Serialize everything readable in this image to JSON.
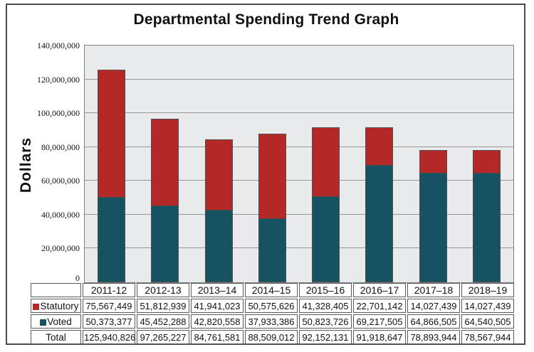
{
  "title": "Departmental Spending Trend Graph",
  "y_axis": {
    "label": "Dollars",
    "tick_labels": [
      "0",
      "20,000,000",
      "40,000,000",
      "60,000,000",
      "80,000,000",
      "100,000,000",
      "120,000,000",
      "140,000,000"
    ],
    "max_value": 140000000,
    "tick_interval": 20000000
  },
  "chart_data": {
    "type": "bar",
    "stacked": true,
    "title": "Departmental Spending Trend Graph",
    "xlabel": "",
    "ylabel": "Dollars",
    "ylim": [
      0,
      140000000
    ],
    "grid": true,
    "legend_position": "table-left",
    "categories": [
      "2011-12",
      "2012-13",
      "2013–14",
      "2014–15",
      "2015–16",
      "2016–17",
      "2017–18",
      "2018–19"
    ],
    "series": [
      {
        "name": "Statutory",
        "color": "#b42828",
        "stack_order": "top",
        "values": [
          75567449,
          51812939,
          41941023,
          50575626,
          41328405,
          22701142,
          14027439,
          14027439
        ]
      },
      {
        "name": "Voted",
        "color": "#155363",
        "stack_order": "bottom",
        "values": [
          50373377,
          45452288,
          42820558,
          37933386,
          50823726,
          69217505,
          64866505,
          64540505
        ]
      }
    ]
  },
  "table": {
    "rows": [
      {
        "label": "Statutory",
        "marker_color": "#b42828",
        "values": [
          "75,567,449",
          "51,812,939",
          "41,941,023",
          "50,575,626",
          "41,328,405",
          "22,701,142",
          "14,027,439",
          "14,027,439"
        ]
      },
      {
        "label": "Voted",
        "marker_color": "#155363",
        "values": [
          "50,373,377",
          "45,452,288",
          "42,820,558",
          "37,933,386",
          "50,823,726",
          "69,217,505",
          "64,866,505",
          "64,540,505"
        ]
      },
      {
        "label": "Total",
        "marker_color": null,
        "values": [
          "125,940,826",
          "97,265,227",
          "84,761,581",
          "88,509,012",
          "92,152,131",
          "91,918,647",
          "78,893,944",
          "78,567,944"
        ]
      }
    ]
  },
  "colors": {
    "statutory": "#b42828",
    "voted": "#155363",
    "plot_background": "#e9eaec",
    "gridline": "#949698",
    "plot_border": "#7e8082",
    "bar_border": "#4e4e4e",
    "table_border": "#5a5a5a",
    "frame_border": "#4c4c4c"
  }
}
